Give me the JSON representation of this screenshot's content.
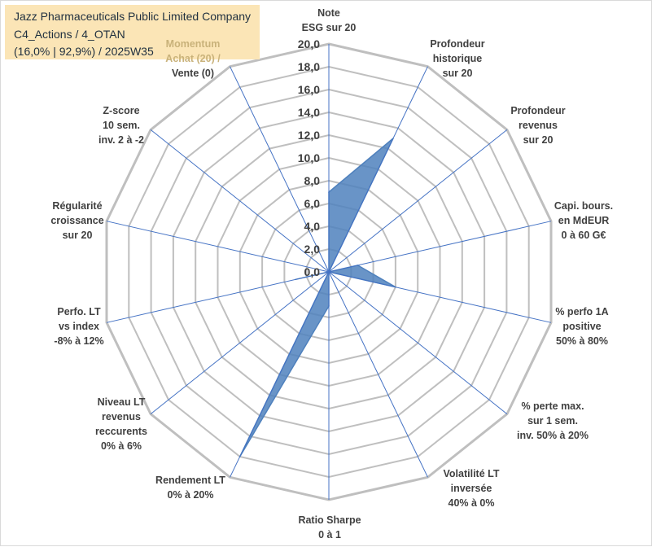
{
  "title": {
    "line1": "Jazz Pharmaceuticals Public Limited Company",
    "line2": "C4_Actions / 4_OTAN",
    "line3": "(16,0% | 92,9%) / 2025W35"
  },
  "colors": {
    "title_bg": "#fbe5b6",
    "series_fill": "#4f81bd",
    "axis_line": "#4472c4",
    "grid": "#bfbfbf",
    "momentum_text": "#c9b27a",
    "label_text": "#404040"
  },
  "chart_data": {
    "type": "radar",
    "title": "",
    "rmin": 0,
    "rmax": 20,
    "step": 2,
    "tick_labels": [
      "0,0",
      "2,0",
      "4,0",
      "6,0",
      "8,0",
      "10,0",
      "12,0",
      "14,0",
      "16,0",
      "18,0",
      "20,0"
    ],
    "legend": "none",
    "grid": true,
    "axes": [
      {
        "label": [
          "Note",
          "ESG sur 20"
        ],
        "value": 7.0
      },
      {
        "label": [
          "Profondeur",
          "historique",
          "sur 20"
        ],
        "value": 13.0
      },
      {
        "label": [
          "Profondeur",
          "revenus",
          "sur 20"
        ],
        "value": 0.0
      },
      {
        "label": [
          "Capi. bours.",
          "en MdEUR",
          "0 à 60 G€"
        ],
        "value": 2.6
      },
      {
        "label": [
          "% perfo 1A",
          "positive",
          "50% à 80%"
        ],
        "value": 6.0
      },
      {
        "label": [
          "% perte max.",
          "sur 1 sem.",
          "inv. 50% à 20%"
        ],
        "value": 0.0
      },
      {
        "label": [
          "Volatilité LT",
          "inversée",
          "40% à 0%"
        ],
        "value": 0.0
      },
      {
        "label": [
          "Ratio Sharpe",
          "0 à 1"
        ],
        "value": 3.0
      },
      {
        "label": [
          "Rendement LT",
          "0% à 20%"
        ],
        "value": 18.0
      },
      {
        "label": [
          "Niveau LT",
          "revenus",
          "reccurents",
          "0% à 6%"
        ],
        "value": 0.0
      },
      {
        "label": [
          "Perfo. LT",
          "vs index",
          "-8% à 12%"
        ],
        "value": 3.0
      },
      {
        "label": [
          "Régularité",
          "croissance",
          "sur 20"
        ],
        "value": 0.0
      },
      {
        "label": [
          "Z-score",
          "10 sem.",
          "inv. 2 à -2"
        ],
        "value": 0.0
      },
      {
        "label": [
          "Momentum",
          "Achat (20) /",
          "Vente (0)"
        ],
        "value": 0.0
      }
    ]
  }
}
